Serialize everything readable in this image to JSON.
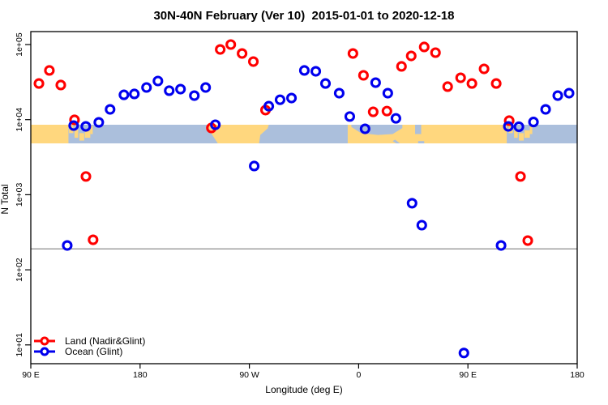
{
  "title": "30N-40N February (Ver 10)  2015-01-01 to 2020-12-18",
  "colors": {
    "land_series": "#ff0000",
    "ocean_series": "#0000ee",
    "map_land": "#ffd77e",
    "map_ocean": "#abbfdc",
    "frame": "#000000",
    "threshold_line": "#8c8c8c"
  },
  "legend": [
    {
      "label": "Land (Nadir&Glint)"
    },
    {
      "label": "Ocean (Glint)"
    }
  ],
  "threshold_value": 190,
  "map_strip": {
    "description": "latitude band 30N-40N land/ocean map",
    "land_shapes": [
      {
        "type": "rect",
        "lon": [
          90,
          121
        ],
        "f": [
          0,
          1
        ]
      },
      {
        "type": "rect",
        "lon": [
          121.5,
          125
        ],
        "f": [
          0,
          0.45
        ]
      },
      {
        "type": "rect",
        "lon": [
          126,
          129
        ],
        "f": [
          0.25,
          0.7
        ]
      },
      {
        "type": "rect",
        "lon": [
          130,
          134
        ],
        "f": [
          0.45,
          0.85
        ]
      },
      {
        "type": "rect",
        "lon": [
          134.5,
          139
        ],
        "f": [
          0.3,
          0.7
        ]
      },
      {
        "type": "rect",
        "lon": [
          139,
          141
        ],
        "f": [
          0.05,
          0.5
        ]
      },
      {
        "type": "poly",
        "pts": [
          [
            236,
            0
          ],
          [
            286,
            0
          ],
          [
            285,
            0.2
          ],
          [
            279,
            0.55
          ],
          [
            278,
            1
          ],
          [
            244,
            1
          ],
          [
            238,
            0.4
          ],
          [
            236,
            0.12
          ]
        ]
      },
      {
        "type": "rect",
        "lon": [
          351,
          482
        ],
        "f": [
          0,
          1
        ]
      },
      {
        "type": "rect",
        "lon": [
          483.5,
          487
        ],
        "f": [
          0,
          0.45
        ]
      },
      {
        "type": "rect",
        "lon": [
          488,
          491
        ],
        "f": [
          0.25,
          0.7
        ]
      },
      {
        "type": "rect",
        "lon": [
          492,
          496
        ],
        "f": [
          0.45,
          0.85
        ]
      },
      {
        "type": "rect",
        "lon": [
          496.5,
          501
        ],
        "f": [
          0.3,
          0.7
        ]
      },
      {
        "type": "rect",
        "lon": [
          501,
          503
        ],
        "f": [
          0.05,
          0.5
        ]
      }
    ],
    "sea_shapes": [
      {
        "type": "poly",
        "pts": [
          [
            354,
            0
          ],
          [
            396,
            0
          ],
          [
            396,
            0.18
          ],
          [
            388,
            0.5
          ],
          [
            376,
            0.55
          ],
          [
            362,
            0.45
          ],
          [
            354,
            0.12
          ]
        ]
      },
      {
        "type": "rect",
        "lon": [
          406.5,
          411.5
        ],
        "f": [
          0,
          0.5
        ]
      },
      {
        "type": "poly",
        "pts": [
          [
            390,
            0.8
          ],
          [
            394,
            1
          ],
          [
            391,
            1
          ],
          [
            388,
            0.88
          ]
        ]
      },
      {
        "type": "rect",
        "lon": [
          409,
          414
        ],
        "f": [
          0.88,
          1
        ]
      }
    ]
  },
  "chart_data": {
    "type": "scatter",
    "title": "30N-40N February (Ver 10)  2015-01-01 to 2020-12-18",
    "xlabel": "Longitude (deg E)",
    "ylabel": "N Total",
    "x_range": [
      90,
      540
    ],
    "y_scale": "log10",
    "y_range": [
      5.6,
      150000
    ],
    "x_ticks": [
      {
        "v": 90,
        "label": "90 E"
      },
      {
        "v": 180,
        "label": "180"
      },
      {
        "v": 270,
        "label": "90 W"
      },
      {
        "v": 360,
        "label": "0"
      },
      {
        "v": 450,
        "label": "90 E"
      },
      {
        "v": 540,
        "label": "180"
      }
    ],
    "y_ticks": [
      {
        "v": 100000,
        "label": "1e+05"
      },
      {
        "v": 10000,
        "label": "1e+04"
      },
      {
        "v": 1000,
        "label": "1e+03"
      },
      {
        "v": 100,
        "label": "1e+02"
      },
      {
        "v": 10,
        "label": "1e+01"
      }
    ],
    "legend_position": "bottom-left",
    "series": [
      {
        "name": "Land (Nadir&Glint)",
        "marker": "open-circle",
        "points": [
          {
            "lon": 96.7,
            "n": 30300
          },
          {
            "lon": 105.3,
            "n": 45200
          },
          {
            "lon": 114.7,
            "n": 28900
          },
          {
            "lon": 126.0,
            "n": 9930
          },
          {
            "lon": 135.4,
            "n": 1750
          },
          {
            "lon": 141.3,
            "n": 251
          },
          {
            "lon": 238.7,
            "n": 7750
          },
          {
            "lon": 246.0,
            "n": 86100
          },
          {
            "lon": 254.7,
            "n": 100000
          },
          {
            "lon": 264.0,
            "n": 76000
          },
          {
            "lon": 273.3,
            "n": 59300
          },
          {
            "lon": 283.3,
            "n": 13400
          },
          {
            "lon": 355.3,
            "n": 76000
          },
          {
            "lon": 364.0,
            "n": 38900
          },
          {
            "lon": 372.0,
            "n": 12700
          },
          {
            "lon": 383.3,
            "n": 13000
          },
          {
            "lon": 395.3,
            "n": 51200
          },
          {
            "lon": 403.3,
            "n": 70600
          },
          {
            "lon": 414.0,
            "n": 92900
          },
          {
            "lon": 423.3,
            "n": 78000
          },
          {
            "lon": 433.3,
            "n": 27500
          },
          {
            "lon": 444.0,
            "n": 36100
          },
          {
            "lon": 453.3,
            "n": 30300
          },
          {
            "lon": 463.3,
            "n": 47400
          },
          {
            "lon": 473.3,
            "n": 30300
          },
          {
            "lon": 484.0,
            "n": 9690
          },
          {
            "lon": 493.3,
            "n": 1750
          },
          {
            "lon": 499.3,
            "n": 245
          }
        ]
      },
      {
        "name": "Ocean (Glint)",
        "marker": "open-circle",
        "points": [
          {
            "lon": 120.0,
            "n": 211
          },
          {
            "lon": 125.3,
            "n": 8340
          },
          {
            "lon": 135.3,
            "n": 8130
          },
          {
            "lon": 146.0,
            "n": 9200
          },
          {
            "lon": 155.3,
            "n": 13700
          },
          {
            "lon": 166.7,
            "n": 21400
          },
          {
            "lon": 175.3,
            "n": 22000
          },
          {
            "lon": 185.3,
            "n": 26800
          },
          {
            "lon": 194.7,
            "n": 32700
          },
          {
            "lon": 204.0,
            "n": 24300
          },
          {
            "lon": 213.3,
            "n": 25500
          },
          {
            "lon": 224.7,
            "n": 20900
          },
          {
            "lon": 234.0,
            "n": 26800
          },
          {
            "lon": 242.0,
            "n": 8550
          },
          {
            "lon": 274.0,
            "n": 2410
          },
          {
            "lon": 286.0,
            "n": 15100
          },
          {
            "lon": 295.3,
            "n": 18400
          },
          {
            "lon": 304.7,
            "n": 19400
          },
          {
            "lon": 315.3,
            "n": 45200
          },
          {
            "lon": 324.7,
            "n": 44000
          },
          {
            "lon": 332.7,
            "n": 30300
          },
          {
            "lon": 344.0,
            "n": 22500
          },
          {
            "lon": 352.7,
            "n": 11000
          },
          {
            "lon": 365.3,
            "n": 7550
          },
          {
            "lon": 374.0,
            "n": 31100
          },
          {
            "lon": 384.0,
            "n": 22500
          },
          {
            "lon": 390.7,
            "n": 10400
          },
          {
            "lon": 404.0,
            "n": 770
          },
          {
            "lon": 412.0,
            "n": 393
          },
          {
            "lon": 446.7,
            "n": 7.8
          },
          {
            "lon": 477.3,
            "n": 211
          },
          {
            "lon": 483.3,
            "n": 8130
          },
          {
            "lon": 492.0,
            "n": 8040
          },
          {
            "lon": 504.0,
            "n": 9310
          },
          {
            "lon": 514.0,
            "n": 13700
          },
          {
            "lon": 524.0,
            "n": 20900
          },
          {
            "lon": 533.3,
            "n": 22500
          }
        ]
      }
    ]
  }
}
